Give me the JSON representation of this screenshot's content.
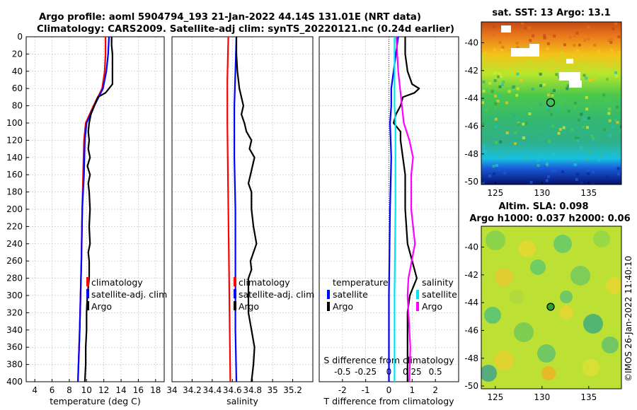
{
  "title_line1": "Argo profile: aoml 5904794_193 21-Jan-2022 44.14S 131.01E (NRT data)",
  "title_line2": "Climatology: CARS2009. Satellite-adj clim: synTS_20220121.nc (0.24d earlier)",
  "watermark": "©IMOS 26-Jan-2022 11:40:10",
  "colors": {
    "climatology": "#ff0000",
    "satellite": "#0000ff",
    "argo": "#000000",
    "sat_salinity": "#00e5ee",
    "argo_salinity": "#ff00ff",
    "purple": "#9b30ff"
  },
  "chart_data": [
    {
      "type": "line",
      "name": "temperature-profile",
      "xlabel": "temperature (deg C)",
      "ylabel": "",
      "xlim": [
        3,
        19
      ],
      "ylim": [
        400,
        0
      ],
      "xticks": [
        4,
        6,
        8,
        10,
        12,
        14,
        16,
        18
      ],
      "yticks": [
        0,
        20,
        40,
        60,
        80,
        100,
        120,
        140,
        160,
        180,
        200,
        220,
        240,
        260,
        280,
        300,
        320,
        340,
        360,
        380,
        400
      ],
      "legend": [
        "climatology",
        "satellite-adj. clim",
        "Argo"
      ],
      "series": [
        {
          "name": "climatology",
          "color": "#ff0000",
          "depth": [
            0,
            20,
            40,
            60,
            80,
            100,
            120,
            160,
            200,
            260,
            300,
            340,
            400
          ],
          "values": [
            12.2,
            12.2,
            12.1,
            11.8,
            10.8,
            9.9,
            9.7,
            9.6,
            9.5,
            9.4,
            9.3,
            9.2,
            9.0
          ]
        },
        {
          "name": "satellite-adj. clim",
          "color": "#0000ff",
          "depth": [
            0,
            20,
            40,
            60,
            80,
            100,
            120,
            160,
            200,
            260,
            300,
            340,
            400
          ],
          "values": [
            12.6,
            12.5,
            12.3,
            11.9,
            10.9,
            10.0,
            9.8,
            9.7,
            9.5,
            9.4,
            9.3,
            9.2,
            9.0
          ]
        },
        {
          "name": "Argo",
          "color": "#000000",
          "depth": [
            0,
            10,
            20,
            40,
            55,
            60,
            65,
            70,
            80,
            90,
            100,
            110,
            120,
            130,
            140,
            150,
            160,
            170,
            180,
            200,
            220,
            240,
            250,
            260,
            280,
            300,
            320,
            340,
            360,
            380,
            400
          ],
          "values": [
            12.9,
            12.9,
            13.0,
            13.0,
            13.0,
            12.6,
            12.2,
            11.3,
            10.9,
            10.5,
            10.3,
            10.2,
            10.3,
            10.2,
            10.4,
            10.1,
            10.4,
            10.2,
            10.3,
            10.4,
            10.3,
            10.4,
            10.2,
            10.3,
            10.3,
            10.1,
            10.0,
            10.0,
            9.9,
            9.9,
            9.8
          ]
        }
      ]
    },
    {
      "type": "line",
      "name": "salinity-profile",
      "xlabel": "salinity",
      "xlim": [
        34,
        35.4
      ],
      "ylim": [
        400,
        0
      ],
      "xticks": [
        34,
        34.2,
        34.4,
        34.6,
        34.8,
        35,
        35.2
      ],
      "tick_labels": [
        "34",
        "34.2",
        "34.4",
        "34.6",
        "34.8",
        "35",
        "35.2"
      ],
      "legend": [
        "climatology",
        "satellite-adj. clim",
        "Argo"
      ],
      "series": [
        {
          "name": "climatology",
          "color": "#ff0000",
          "depth": [
            0,
            50,
            100,
            200,
            300,
            400
          ],
          "values": [
            34.56,
            34.55,
            34.55,
            34.56,
            34.57,
            34.58
          ]
        },
        {
          "name": "satellite-adj. clim",
          "color": "#0000ff",
          "depth": [
            0,
            40,
            80,
            100,
            140,
            200,
            260,
            300,
            340,
            400
          ],
          "values": [
            34.64,
            34.63,
            34.62,
            34.62,
            34.62,
            34.63,
            34.63,
            34.63,
            34.63,
            34.64
          ]
        },
        {
          "name": "Argo",
          "color": "#000000",
          "depth": [
            0,
            20,
            40,
            60,
            80,
            90,
            100,
            110,
            120,
            130,
            140,
            150,
            160,
            170,
            180,
            200,
            220,
            240,
            260,
            270,
            280,
            300,
            320,
            340,
            360,
            380,
            400
          ],
          "values": [
            34.64,
            34.64,
            34.65,
            34.67,
            34.71,
            34.69,
            34.72,
            34.74,
            34.79,
            34.77,
            34.82,
            34.8,
            34.78,
            34.76,
            34.79,
            34.79,
            34.81,
            34.84,
            34.78,
            34.79,
            34.76,
            34.76,
            34.76,
            34.79,
            34.82,
            34.81,
            34.79
          ]
        }
      ]
    },
    {
      "type": "line",
      "name": "difference-profile",
      "xlabel": "T difference from climatology",
      "xlabel_top": "S difference from climatology",
      "xlim": [
        -3,
        3
      ],
      "s_xlim": [
        -0.75,
        0.75
      ],
      "ylim": [
        400,
        0
      ],
      "xticks": [
        -2,
        -1,
        0,
        1,
        2
      ],
      "s_xticks": [
        "-0.5",
        "-0.25",
        "0",
        "0.25",
        "0.5"
      ],
      "legend_temperature": [
        "temperature",
        "satellite",
        "Argo"
      ],
      "legend_salinity": [
        "salinity",
        "satellite",
        "Argo"
      ],
      "series": [
        {
          "name": "T satellite",
          "color": "#0000ff",
          "depth": [
            0,
            20,
            40,
            60,
            80,
            100,
            140,
            200,
            300,
            400
          ],
          "values": [
            0.4,
            0.3,
            0.2,
            0.1,
            0.1,
            0.05,
            0.1,
            0.05,
            0.0,
            0.0
          ]
        },
        {
          "name": "T Argo",
          "color": "#000000",
          "depth": [
            0,
            20,
            40,
            55,
            60,
            65,
            70,
            80,
            90,
            100,
            110,
            120,
            140,
            160,
            180,
            200,
            240,
            280,
            300,
            320,
            360,
            400
          ],
          "values": [
            0.7,
            0.7,
            0.8,
            1.0,
            1.3,
            1.1,
            0.6,
            0.5,
            0.3,
            0.2,
            0.5,
            0.5,
            0.6,
            0.7,
            0.7,
            0.7,
            0.8,
            1.2,
            0.9,
            0.8,
            0.8,
            0.8
          ]
        },
        {
          "name": "S satellite",
          "color": "#00e5ee",
          "depth": [
            0,
            80,
            100,
            140,
            200,
            300,
            400
          ],
          "values": [
            0.06,
            0.06,
            0.07,
            0.07,
            0.07,
            0.06,
            0.06
          ]
        },
        {
          "name": "S Argo",
          "color": "#ff00ff",
          "depth": [
            0,
            40,
            80,
            100,
            120,
            140,
            160,
            200,
            240,
            280,
            300,
            320,
            360,
            400
          ],
          "values": [
            0.08,
            0.1,
            0.14,
            0.16,
            0.22,
            0.26,
            0.24,
            0.24,
            0.28,
            0.21,
            0.2,
            0.21,
            0.23,
            0.22
          ]
        }
      ]
    },
    {
      "type": "heatmap",
      "name": "sst-map",
      "title": "sat. SST: 13 Argo: 13.1",
      "xticks": [
        125,
        130,
        135
      ],
      "yticks": [
        -40,
        -42,
        -44,
        -46,
        -48,
        -50
      ],
      "xlim": [
        123.5,
        138.5
      ],
      "ylim": [
        -50.2,
        -38.5
      ],
      "marker": {
        "lon": 131.01,
        "lat": -44.14
      }
    },
    {
      "type": "heatmap",
      "name": "sla-map",
      "title": "Altim. SLA: 0.098",
      "subtitle": "Argo h1000: 0.037 h2000: 0.06",
      "xticks": [
        125,
        130,
        135
      ],
      "yticks": [
        -40,
        -42,
        -44,
        -46,
        -48,
        -50
      ],
      "xlim": [
        123.5,
        138.5
      ],
      "ylim": [
        -50.2,
        -38.5
      ],
      "marker": {
        "lon": 131.01,
        "lat": -44.14
      }
    }
  ]
}
